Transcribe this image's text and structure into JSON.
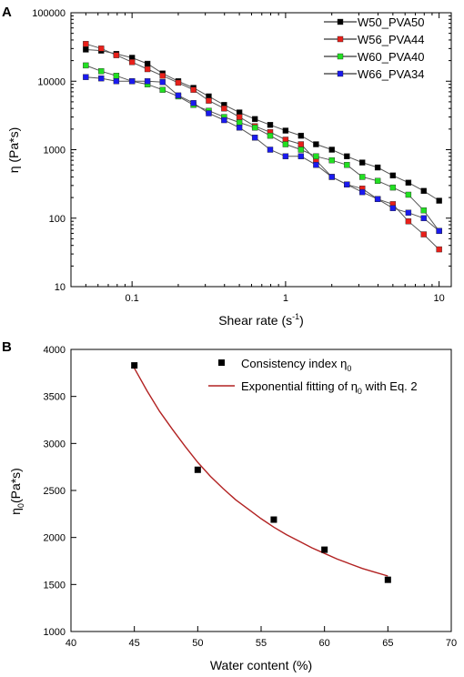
{
  "chart_data": [
    {
      "panel": "A",
      "type": "line",
      "xscale": "log",
      "yscale": "log",
      "xlim": [
        0.04,
        12
      ],
      "ylim": [
        10,
        100000
      ],
      "xticks": [
        0.1,
        1,
        10
      ],
      "xtick_labels": [
        "0.1",
        "1",
        "10"
      ],
      "yticks": [
        10,
        100,
        1000,
        10000,
        100000
      ],
      "ytick_labels": [
        "10",
        "100",
        "1000",
        "10000",
        "100000"
      ],
      "xlabel_main": "Shear rate (s",
      "xlabel_sup": "-1",
      "xlabel_tail": ")",
      "ylabel": "η (Pa*s)",
      "legend_position": "top-right",
      "x": [
        0.05,
        0.063,
        0.079,
        0.1,
        0.126,
        0.158,
        0.2,
        0.251,
        0.316,
        0.398,
        0.5,
        0.631,
        0.794,
        1,
        1.26,
        1.58,
        2,
        2.51,
        3.16,
        3.98,
        5,
        6.31,
        7.94,
        10
      ],
      "series": [
        {
          "name": "W50_PVA50",
          "color": "#000000",
          "values": [
            29000,
            28000,
            25000,
            22000,
            18000,
            13000,
            10000,
            8000,
            6000,
            4500,
            3500,
            2800,
            2300,
            1900,
            1600,
            1200,
            1000,
            800,
            650,
            550,
            420,
            330,
            250,
            180
          ]
        },
        {
          "name": "W56_PVA44",
          "color": "#e8201a",
          "values": [
            35000,
            30000,
            24000,
            19000,
            15000,
            12000,
            9500,
            7500,
            5200,
            4000,
            3000,
            2200,
            1800,
            1400,
            1200,
            700,
            400,
            310,
            270,
            190,
            160,
            90,
            58,
            35
          ]
        },
        {
          "name": "W60_PVA40",
          "color": "#22e022",
          "values": [
            17000,
            14000,
            12000,
            10000,
            9000,
            7500,
            6000,
            4500,
            3700,
            3000,
            2500,
            2100,
            1600,
            1200,
            1000,
            800,
            700,
            600,
            400,
            350,
            280,
            220,
            130,
            65
          ]
        },
        {
          "name": "W66_PVA34",
          "color": "#1a1aee",
          "values": [
            11500,
            11000,
            10000,
            10000,
            10000,
            9700,
            6200,
            4800,
            3400,
            2700,
            2100,
            1500,
            1000,
            800,
            800,
            600,
            400,
            310,
            240,
            190,
            140,
            120,
            100,
            65
          ]
        }
      ]
    },
    {
      "panel": "B",
      "type": "scatter",
      "xlim": [
        40,
        70
      ],
      "ylim": [
        1000,
        4000
      ],
      "xticks": [
        40,
        45,
        50,
        55,
        60,
        65,
        70
      ],
      "yticks": [
        1000,
        1500,
        2000,
        2500,
        3000,
        3500,
        4000
      ],
      "xlabel": "Water content (%)",
      "ylabel_main": "η",
      "ylabel_sub": "0",
      "ylabel_tail": "(Pa*s)",
      "legend_position": "top-right",
      "points": {
        "name_main": "Consistency index η",
        "name_sub": "0",
        "color": "#000000",
        "x": [
          45,
          50,
          56,
          60,
          65
        ],
        "y": [
          3830,
          2720,
          2190,
          1870,
          1550
        ]
      },
      "fit": {
        "name_main": "Exponential fitting of η",
        "name_sub": "0",
        "name_tail": " with Eq. 2",
        "color": "#b22222",
        "x": [
          45,
          46,
          47,
          48,
          49,
          50,
          51,
          52,
          53,
          54,
          55,
          56,
          57,
          58,
          59,
          60,
          61,
          62,
          63,
          64,
          65
        ],
        "y": [
          3800,
          3560,
          3340,
          3150,
          2970,
          2800,
          2650,
          2520,
          2400,
          2300,
          2200,
          2110,
          2030,
          1960,
          1890,
          1830,
          1770,
          1720,
          1670,
          1630,
          1590
        ]
      }
    }
  ],
  "panel_labels": [
    "A",
    "B"
  ]
}
